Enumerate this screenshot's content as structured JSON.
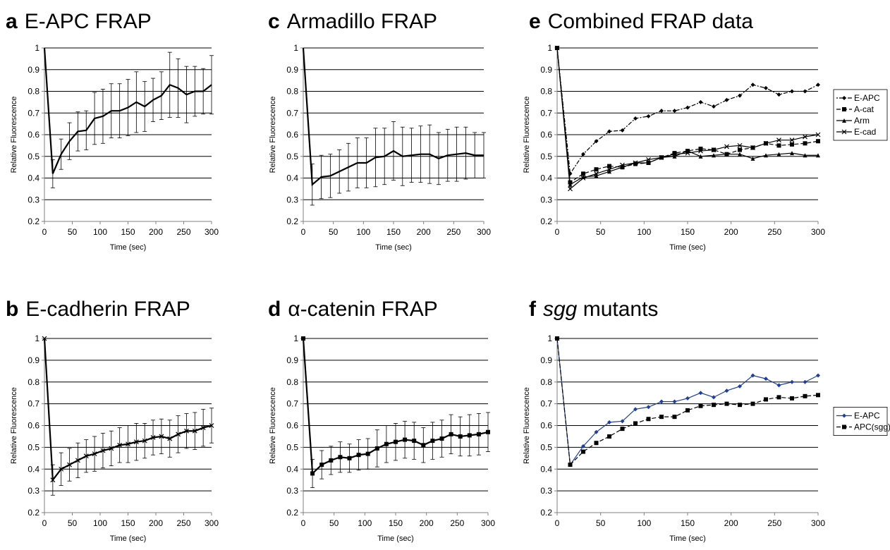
{
  "chart_data": [
    {
      "id": "a",
      "type": "line",
      "letter": "a",
      "title": "E-APC FRAP",
      "xlabel": "Time (sec)",
      "ylabel": "Relative Fluorescence",
      "xlim": [
        0,
        300
      ],
      "ylim": [
        0.2,
        1
      ],
      "xticks": [
        0,
        50,
        100,
        150,
        200,
        250,
        300
      ],
      "yticks": [
        0.2,
        0.3,
        0.4,
        0.5,
        0.6,
        0.7,
        0.8,
        0.9,
        1
      ],
      "grid": "horizontal",
      "legend": null,
      "x": [
        0,
        15,
        30,
        45,
        60,
        75,
        90,
        105,
        120,
        135,
        150,
        165,
        180,
        195,
        210,
        225,
        240,
        255,
        270,
        285,
        300
      ],
      "series": [
        {
          "values": [
            1.0,
            0.42,
            0.51,
            0.57,
            0.615,
            0.62,
            0.675,
            0.685,
            0.71,
            0.71,
            0.725,
            0.75,
            0.73,
            0.76,
            0.78,
            0.83,
            0.815,
            0.785,
            0.8,
            0.8,
            0.83
          ],
          "errors": [
            0,
            0.065,
            0.07,
            0.085,
            0.09,
            0.09,
            0.12,
            0.125,
            0.125,
            0.125,
            0.13,
            0.14,
            0.115,
            0.1,
            0.11,
            0.15,
            0.135,
            0.13,
            0.115,
            0.105,
            0.135
          ],
          "style": "solid",
          "marker": "none",
          "color": "#000000"
        }
      ]
    },
    {
      "id": "c",
      "type": "line",
      "letter": "c",
      "title": "Armadillo FRAP",
      "xlabel": "Time (sec)",
      "ylabel": "Relative Fluorescence",
      "xlim": [
        0,
        300
      ],
      "ylim": [
        0.2,
        1
      ],
      "xticks": [
        0,
        50,
        100,
        150,
        200,
        250,
        300
      ],
      "yticks": [
        0.2,
        0.3,
        0.4,
        0.5,
        0.6,
        0.7,
        0.8,
        0.9,
        1
      ],
      "grid": "horizontal",
      "legend": null,
      "x": [
        0,
        15,
        30,
        45,
        60,
        75,
        90,
        105,
        120,
        135,
        150,
        165,
        180,
        195,
        210,
        225,
        240,
        255,
        270,
        285,
        300
      ],
      "series": [
        {
          "values": [
            1.0,
            0.37,
            0.405,
            0.41,
            0.43,
            0.45,
            0.47,
            0.47,
            0.495,
            0.5,
            0.525,
            0.5,
            0.505,
            0.51,
            0.51,
            0.49,
            0.505,
            0.51,
            0.515,
            0.505,
            0.505
          ],
          "errors": [
            0,
            0.095,
            0.1,
            0.1,
            0.1,
            0.11,
            0.115,
            0.115,
            0.135,
            0.13,
            0.135,
            0.135,
            0.125,
            0.13,
            0.135,
            0.12,
            0.12,
            0.125,
            0.12,
            0.105,
            0.105
          ],
          "style": "solid",
          "marker": "none",
          "color": "#000000"
        }
      ]
    },
    {
      "id": "e",
      "type": "line",
      "letter": "e",
      "title": "Combined FRAP data",
      "xlabel": "Time (sec)",
      "ylabel": "Relative Fluorescence",
      "xlim": [
        0,
        300
      ],
      "ylim": [
        0.2,
        1
      ],
      "xticks": [
        0,
        50,
        100,
        150,
        200,
        250,
        300
      ],
      "yticks": [
        0.2,
        0.3,
        0.4,
        0.5,
        0.6,
        0.7,
        0.8,
        0.9,
        1
      ],
      "grid": "horizontal",
      "legend": "right",
      "x": [
        0,
        15,
        30,
        45,
        60,
        75,
        90,
        105,
        120,
        135,
        150,
        165,
        180,
        195,
        210,
        225,
        240,
        255,
        270,
        285,
        300
      ],
      "series": [
        {
          "name": "E-APC",
          "values": [
            1.0,
            0.42,
            0.51,
            0.57,
            0.615,
            0.62,
            0.675,
            0.685,
            0.71,
            0.71,
            0.725,
            0.75,
            0.73,
            0.76,
            0.78,
            0.83,
            0.815,
            0.785,
            0.8,
            0.8,
            0.83
          ],
          "style": "dashdot",
          "marker": "diamond",
          "color": "#000000"
        },
        {
          "name": "A-cat",
          "values": [
            1.0,
            0.38,
            0.42,
            0.44,
            0.455,
            0.45,
            0.465,
            0.47,
            0.495,
            0.515,
            0.525,
            0.535,
            0.53,
            0.51,
            0.53,
            0.54,
            0.56,
            0.55,
            0.555,
            0.56,
            0.57
          ],
          "style": "dashed",
          "marker": "square",
          "color": "#000000"
        },
        {
          "name": "Arm",
          "values": [
            1.0,
            0.37,
            0.405,
            0.41,
            0.43,
            0.45,
            0.47,
            0.47,
            0.495,
            0.5,
            0.525,
            0.5,
            0.505,
            0.51,
            0.51,
            0.49,
            0.505,
            0.51,
            0.515,
            0.505,
            0.505
          ],
          "style": "solid",
          "marker": "triangle",
          "color": "#000000"
        },
        {
          "name": "E-cad",
          "values": [
            1.0,
            0.35,
            0.4,
            0.42,
            0.44,
            0.46,
            0.47,
            0.485,
            0.495,
            0.51,
            0.515,
            0.525,
            0.53,
            0.545,
            0.55,
            0.54,
            0.56,
            0.575,
            0.575,
            0.59,
            0.6
          ],
          "style": "solid",
          "marker": "x",
          "color": "#000000"
        }
      ]
    },
    {
      "id": "b",
      "type": "line",
      "letter": "b",
      "title": "E-cadherin FRAP",
      "xlabel": "Time (sec)",
      "ylabel": "Relative Fluorescence",
      "xlim": [
        0,
        300
      ],
      "ylim": [
        0.2,
        1
      ],
      "xticks": [
        0,
        50,
        100,
        150,
        200,
        250,
        300
      ],
      "yticks": [
        0.2,
        0.3,
        0.4,
        0.5,
        0.6,
        0.7,
        0.8,
        0.9,
        1
      ],
      "grid": "horizontal",
      "legend": null,
      "x": [
        0,
        15,
        30,
        45,
        60,
        75,
        90,
        105,
        120,
        135,
        150,
        165,
        180,
        195,
        210,
        225,
        240,
        255,
        270,
        285,
        300
      ],
      "series": [
        {
          "values": [
            1.0,
            0.35,
            0.4,
            0.42,
            0.44,
            0.46,
            0.47,
            0.485,
            0.495,
            0.51,
            0.515,
            0.525,
            0.53,
            0.545,
            0.55,
            0.54,
            0.56,
            0.575,
            0.575,
            0.59,
            0.6
          ],
          "errors": [
            0,
            0.07,
            0.075,
            0.075,
            0.08,
            0.075,
            0.08,
            0.08,
            0.08,
            0.08,
            0.085,
            0.085,
            0.08,
            0.08,
            0.08,
            0.085,
            0.085,
            0.08,
            0.085,
            0.085,
            0.08
          ],
          "style": "solid",
          "marker": "x",
          "color": "#000000"
        }
      ]
    },
    {
      "id": "d",
      "type": "line",
      "letter": "d",
      "title": "α-catenin FRAP",
      "xlabel": "Time (sec)",
      "ylabel": "Relative Fluorescence",
      "xlim": [
        0,
        300
      ],
      "ylim": [
        0.2,
        1
      ],
      "xticks": [
        0,
        50,
        100,
        150,
        200,
        250,
        300
      ],
      "yticks": [
        0.2,
        0.3,
        0.4,
        0.5,
        0.6,
        0.7,
        0.8,
        0.9,
        1
      ],
      "grid": "horizontal",
      "legend": null,
      "x": [
        0,
        15,
        30,
        45,
        60,
        75,
        90,
        105,
        120,
        135,
        150,
        165,
        180,
        195,
        210,
        225,
        240,
        255,
        270,
        285,
        300
      ],
      "series": [
        {
          "values": [
            1.0,
            0.38,
            0.42,
            0.44,
            0.455,
            0.45,
            0.465,
            0.47,
            0.495,
            0.515,
            0.525,
            0.535,
            0.53,
            0.51,
            0.53,
            0.54,
            0.56,
            0.55,
            0.555,
            0.56,
            0.57
          ],
          "errors": [
            0,
            0.065,
            0.065,
            0.065,
            0.07,
            0.065,
            0.07,
            0.07,
            0.085,
            0.085,
            0.085,
            0.085,
            0.085,
            0.08,
            0.085,
            0.085,
            0.09,
            0.09,
            0.095,
            0.095,
            0.09
          ],
          "style": "solid",
          "marker": "square",
          "color": "#000000"
        }
      ]
    },
    {
      "id": "f",
      "type": "line",
      "letter": "f",
      "title": "sgg",
      "title_suffix": " mutants",
      "title_italic": true,
      "xlabel": "Time (sec)",
      "ylabel": "Relative Fluorescence",
      "xlim": [
        0,
        300
      ],
      "ylim": [
        0.2,
        1
      ],
      "xticks": [
        0,
        50,
        100,
        150,
        200,
        250,
        300
      ],
      "yticks": [
        0.2,
        0.3,
        0.4,
        0.5,
        0.6,
        0.7,
        0.8,
        0.9,
        1
      ],
      "grid": "horizontal",
      "legend": "right",
      "x": [
        0,
        15,
        30,
        45,
        60,
        75,
        90,
        105,
        120,
        135,
        150,
        165,
        180,
        195,
        210,
        225,
        240,
        255,
        270,
        285,
        300
      ],
      "series": [
        {
          "name": "E-APC",
          "values": [
            1.0,
            0.42,
            0.505,
            0.57,
            0.615,
            0.62,
            0.675,
            0.685,
            0.71,
            0.71,
            0.725,
            0.75,
            0.73,
            0.76,
            0.78,
            0.83,
            0.815,
            0.785,
            0.8,
            0.8,
            0.83
          ],
          "style": "solid",
          "marker": "diamond",
          "color": "#1f3f9f"
        },
        {
          "name": "APC(sgg)",
          "values": [
            1.0,
            0.42,
            0.48,
            0.52,
            0.55,
            0.585,
            0.61,
            0.63,
            0.64,
            0.64,
            0.67,
            0.69,
            0.695,
            0.7,
            0.695,
            0.7,
            0.72,
            0.73,
            0.725,
            0.735,
            0.74
          ],
          "style": "dashed",
          "marker": "square",
          "color": "#000000"
        }
      ]
    }
  ]
}
